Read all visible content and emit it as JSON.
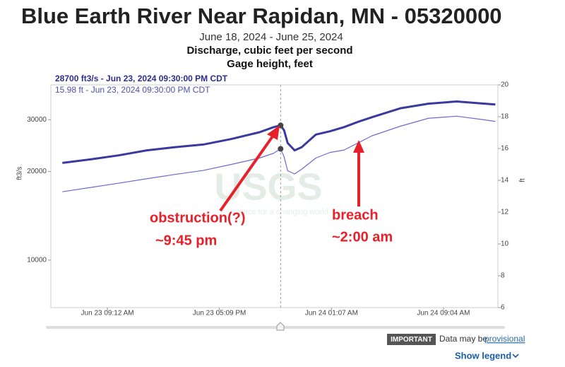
{
  "header": {
    "title": "Blue Earth River Near Rapidan, MN - 05320000",
    "date_range": "June 18, 2024 - June 25, 2024"
  },
  "chart_data": {
    "type": "line",
    "tooltip": [
      "28700 ft3/s - Jun 23, 2024 09:30:00 PM CDT",
      "15.98 ft - Jun 23, 2024 09:30:00 PM CDT"
    ],
    "ylabel": "ft3/s",
    "y2label": "ft",
    "x": [
      "Jun 23 06:00 AM",
      "Jun 23 08:00 AM",
      "Jun 23 10:00 AM",
      "Jun 23 12:00 PM",
      "Jun 23 02:00 PM",
      "Jun 23 04:00 PM",
      "Jun 23 06:00 PM",
      "Jun 23 08:00 PM",
      "Jun 23 09:00 PM",
      "Jun 23 09:30 PM",
      "Jun 23 09:45 PM",
      "Jun 23 10:00 PM",
      "Jun 23 10:30 PM",
      "Jun 23 11:00 PM",
      "Jun 24 12:00 AM",
      "Jun 24 01:00 AM",
      "Jun 24 02:00 AM",
      "Jun 24 03:00 AM",
      "Jun 24 04:00 AM",
      "Jun 24 06:00 AM",
      "Jun 24 08:00 AM",
      "Jun 24 10:00 AM",
      "Jun 24 12:00 PM",
      "Jun 24 12:45 PM"
    ],
    "series": [
      {
        "name": "Discharge, cubic feet per second",
        "color": "#3a3a9e",
        "values": [
          21400,
          22000,
          22700,
          23600,
          24200,
          24700,
          25800,
          27200,
          28300,
          28700,
          27600,
          25000,
          23600,
          24200,
          26700,
          27400,
          28300,
          29500,
          30600,
          32800,
          34000,
          34600,
          34000,
          33800
        ]
      },
      {
        "name": "Gage height, feet",
        "color": "#6b6bd0",
        "axis": "y2",
        "values": [
          13.28,
          13.55,
          13.82,
          14.1,
          14.37,
          14.62,
          15.0,
          15.4,
          15.7,
          15.98,
          15.47,
          14.6,
          14.4,
          14.7,
          15.4,
          15.75,
          15.9,
          16.35,
          16.8,
          17.4,
          17.9,
          18.03,
          17.8,
          17.7
        ]
      }
    ],
    "xlim": [
      "Jun 23 05:11 AM",
      "Jun 24 12:56 PM"
    ],
    "xticks": [
      "Jun 23 09:12 AM",
      "Jun 23 05:09 PM",
      "Jun 24 01:07 AM",
      "Jun 24 09:04 AM"
    ],
    "ylim": [
      6900,
      39400
    ],
    "log_scale": true,
    "yticks": [
      10000,
      20000,
      30000
    ],
    "y2lim": [
      6,
      20
    ],
    "y2ticks": [
      6,
      8,
      10,
      12,
      14,
      16,
      18,
      20
    ],
    "grid": false,
    "annotations": [
      "obstruction(?)",
      "~9:45 pm",
      "breach",
      "~2:00 am"
    ],
    "watermark": [
      "USGS",
      "science for a changing world"
    ]
  },
  "footer": {
    "badge": "IMPORTANT",
    "note": "Data may be",
    "link": "provisional",
    "legend_toggle": "Show legend"
  }
}
